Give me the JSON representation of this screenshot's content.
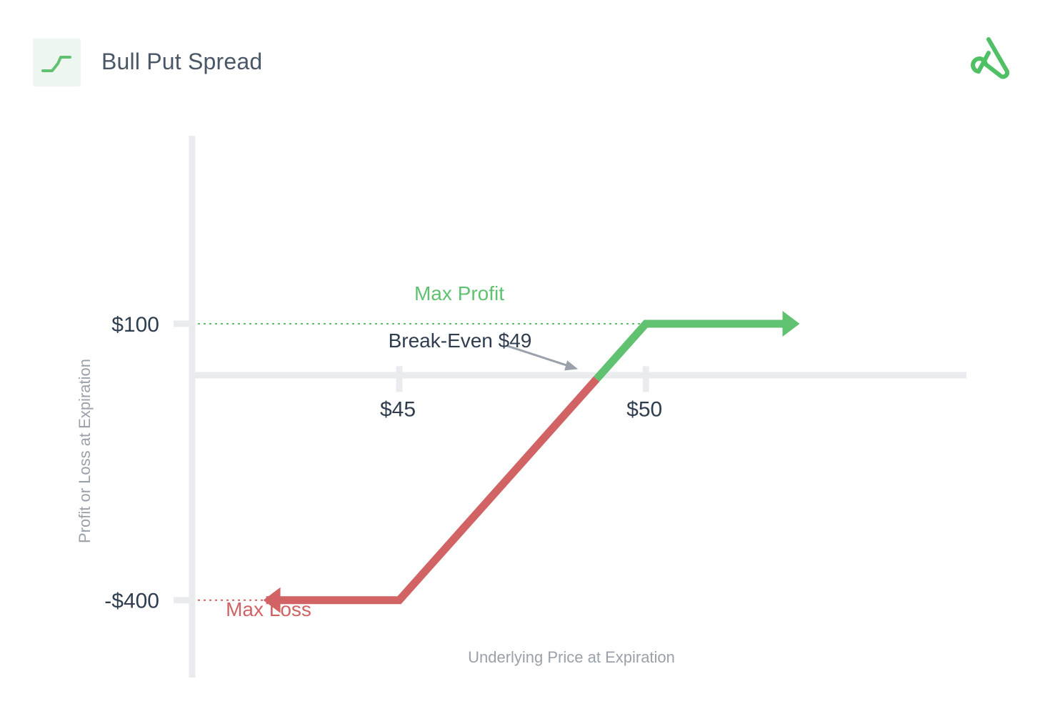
{
  "header": {
    "title": "Bull Put Spread",
    "icon": "rising-step-icon",
    "logo": "brand-a-logo"
  },
  "colors": {
    "profit": "#60c170",
    "loss": "#d16364",
    "axis": "#e9ebee",
    "text_dark": "#2f3d4f",
    "text_muted": "#9aa1ab",
    "arrow": "#9aa1ab"
  },
  "chart_data": {
    "type": "line",
    "title": "",
    "xlabel": "Underlying Price at Expiration",
    "ylabel": "Profit or Loss at Expiration",
    "xticks": [
      {
        "value": 45,
        "label": "$45"
      },
      {
        "value": 50,
        "label": "$50"
      }
    ],
    "yticks": [
      {
        "value": 100,
        "label": "$100"
      },
      {
        "value": -400,
        "label": "-$400"
      }
    ],
    "xlim": [
      40.8,
      56.5
    ],
    "ylim": [
      -540,
      440
    ],
    "series": [
      {
        "name": "",
        "color": "#d16364",
        "x": [
          42.3,
          45,
          49
        ],
        "y": [
          -400,
          -400,
          0
        ]
      },
      {
        "name": "",
        "color": "#60c170",
        "x": [
          49,
          50,
          52.8
        ],
        "y": [
          0,
          100,
          100
        ]
      }
    ],
    "reference_lines": [
      {
        "y": 100,
        "from_x": 40.8,
        "to_x": 50,
        "color": "#60c170",
        "style": "dotted"
      },
      {
        "y": -400,
        "from_x": 40.8,
        "to_x": 42.3,
        "color": "#d16364",
        "style": "dotted"
      }
    ],
    "annotations": {
      "max_profit": "Max Profit",
      "max_loss": "Max Loss",
      "break_even": "Break-Even $49",
      "break_even_x": 49
    },
    "grid": false,
    "legend": "none"
  }
}
